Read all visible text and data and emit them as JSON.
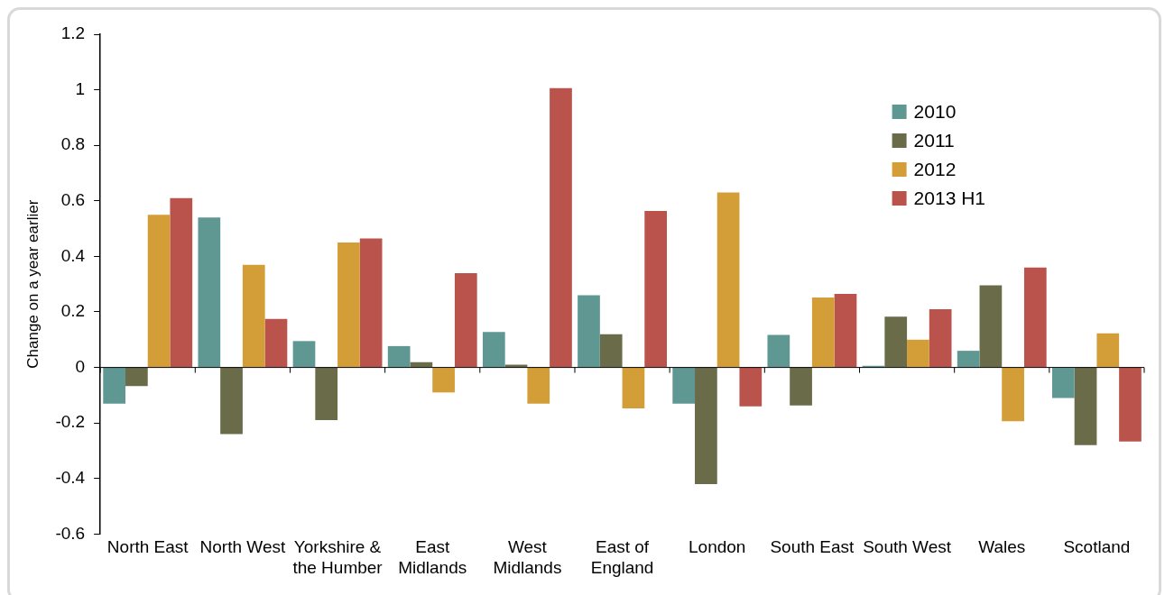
{
  "chart_data": {
    "type": "bar",
    "ylabel": "Change on a year earlier",
    "categories": [
      "North East",
      "North West",
      "Yorkshire & the Humber",
      "East Midlands",
      "West Midlands",
      "East of England",
      "London",
      "South East",
      "South West",
      "Wales",
      "Scotland"
    ],
    "series": [
      {
        "name": "2010",
        "color": "#5f9792",
        "values": [
          -0.13,
          0.54,
          0.095,
          0.077,
          0.128,
          0.26,
          -0.13,
          0.117,
          0.006,
          0.06,
          -0.11
        ]
      },
      {
        "name": "2011",
        "color": "#6a6b48",
        "values": [
          -0.067,
          -0.24,
          -0.19,
          0.019,
          0.01,
          0.12,
          -0.42,
          -0.137,
          0.183,
          0.296,
          -0.28
        ]
      },
      {
        "name": "2012",
        "color": "#d39e38",
        "values": [
          0.55,
          0.37,
          0.45,
          -0.09,
          -0.13,
          -0.147,
          0.63,
          0.252,
          0.1,
          -0.194,
          0.123
        ]
      },
      {
        "name": "2013 H1",
        "color": "#bb534d",
        "values": [
          0.61,
          0.175,
          0.465,
          0.34,
          1.006,
          0.564,
          -0.14,
          0.265,
          0.21,
          0.36,
          -0.267
        ]
      }
    ],
    "ylim": [
      -0.6,
      1.2
    ],
    "yticks": [
      -0.6,
      -0.4,
      -0.2,
      0,
      0.2,
      0.4,
      0.6,
      0.8,
      1,
      1.2
    ],
    "legend": "top right"
  }
}
